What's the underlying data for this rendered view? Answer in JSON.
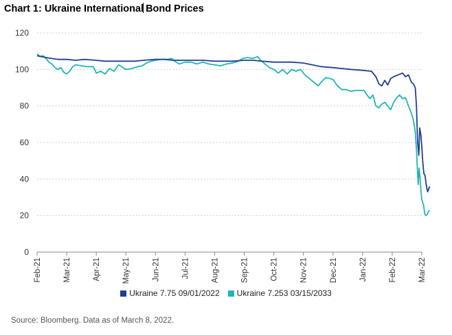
{
  "title_before": "Chart 1: Ukraine International",
  "title_after": "Bond Prices",
  "source": "Source: Bloomberg. Data as of March 8, 2022.",
  "colors": {
    "series1": "#1f3f8f",
    "series2": "#1fb4b8",
    "grid": "#bfbfbf",
    "axis": "#888888",
    "text": "#333333"
  },
  "chart_data": {
    "type": "line",
    "title": "Chart 1: Ukraine International Bond Prices",
    "xlabel": "",
    "ylabel": "",
    "ylim": [
      0,
      120
    ],
    "yticks": [
      0,
      20,
      40,
      60,
      80,
      100,
      120
    ],
    "grid": "horizontal-dotted",
    "legend_position": "bottom",
    "categories": [
      "Feb-21",
      "Mar-21",
      "Apr-21",
      "May-21",
      "Jun-21",
      "Jul-21",
      "Aug-21",
      "Sep-21",
      "Oct-21",
      "Nov-21",
      "Dec-21",
      "Jan-22",
      "Feb-22",
      "Mar-22"
    ],
    "series": [
      {
        "name": "Ukraine 7.75 09/01/2022",
        "points": [
          [
            0,
            107.5
          ],
          [
            0.15,
            107
          ],
          [
            0.3,
            106.5
          ],
          [
            0.5,
            106
          ],
          [
            0.7,
            105.5
          ],
          [
            1,
            105.5
          ],
          [
            1.3,
            105
          ],
          [
            1.6,
            105.5
          ],
          [
            2,
            105
          ],
          [
            2.3,
            104.5
          ],
          [
            2.6,
            104.5
          ],
          [
            3,
            104.5
          ],
          [
            3.3,
            104.5
          ],
          [
            3.6,
            105
          ],
          [
            4,
            105.5
          ],
          [
            4.3,
            105.5
          ],
          [
            4.6,
            105
          ],
          [
            5,
            105
          ],
          [
            5.3,
            105
          ],
          [
            5.6,
            105
          ],
          [
            6,
            104.5
          ],
          [
            6.3,
            104.5
          ],
          [
            6.6,
            104.5
          ],
          [
            7,
            105
          ],
          [
            7.3,
            105
          ],
          [
            7.6,
            104.5
          ],
          [
            8,
            104
          ],
          [
            8.3,
            104
          ],
          [
            8.6,
            104
          ],
          [
            9,
            103.5
          ],
          [
            9.3,
            102.5
          ],
          [
            9.6,
            101.5
          ],
          [
            10,
            101
          ],
          [
            10.3,
            100.5
          ],
          [
            10.6,
            100
          ],
          [
            11,
            99.5
          ],
          [
            11.3,
            99
          ],
          [
            11.45,
            96
          ],
          [
            11.55,
            92
          ],
          [
            11.65,
            91
          ],
          [
            11.75,
            94
          ],
          [
            11.85,
            91.5
          ],
          [
            11.95,
            95
          ],
          [
            12.05,
            96
          ],
          [
            12.2,
            97
          ],
          [
            12.35,
            98
          ],
          [
            12.45,
            96
          ],
          [
            12.55,
            97
          ],
          [
            12.65,
            93
          ],
          [
            12.72,
            92
          ],
          [
            12.78,
            90
          ],
          [
            12.82,
            80
          ],
          [
            12.86,
            60
          ],
          [
            12.9,
            53
          ],
          [
            12.93,
            68
          ],
          [
            12.97,
            64
          ],
          [
            13.0,
            58
          ],
          [
            13.03,
            50
          ],
          [
            13.07,
            43
          ],
          [
            13.11,
            42
          ],
          [
            13.14,
            38
          ],
          [
            13.17,
            35
          ],
          [
            13.2,
            33
          ],
          [
            13.24,
            35
          ],
          [
            13.27,
            36
          ]
        ]
      },
      {
        "name": "Ukraine 7.253 03/15/2033",
        "points": [
          [
            0,
            108.5
          ],
          [
            0.1,
            107
          ],
          [
            0.2,
            107.5
          ],
          [
            0.3,
            106
          ],
          [
            0.4,
            104
          ],
          [
            0.5,
            103
          ],
          [
            0.6,
            101
          ],
          [
            0.7,
            100
          ],
          [
            0.8,
            101
          ],
          [
            0.9,
            98.5
          ],
          [
            1,
            97.5
          ],
          [
            1.1,
            99
          ],
          [
            1.2,
            101.5
          ],
          [
            1.3,
            102.5
          ],
          [
            1.5,
            102
          ],
          [
            1.7,
            101.5
          ],
          [
            1.9,
            101.5
          ],
          [
            2,
            98
          ],
          [
            2.15,
            99
          ],
          [
            2.3,
            97.5
          ],
          [
            2.45,
            100.5
          ],
          [
            2.6,
            99
          ],
          [
            2.75,
            102.5
          ],
          [
            2.9,
            101
          ],
          [
            3,
            100
          ],
          [
            3.2,
            100.5
          ],
          [
            3.4,
            101.5
          ],
          [
            3.55,
            102
          ],
          [
            3.7,
            103.5
          ],
          [
            3.85,
            104.5
          ],
          [
            4,
            105
          ],
          [
            4.2,
            105.5
          ],
          [
            4.4,
            105.5
          ],
          [
            4.55,
            106
          ],
          [
            4.65,
            104.5
          ],
          [
            4.8,
            103
          ],
          [
            5,
            104
          ],
          [
            5.2,
            104
          ],
          [
            5.4,
            103
          ],
          [
            5.6,
            104
          ],
          [
            5.8,
            103
          ],
          [
            6,
            102.5
          ],
          [
            6.2,
            102
          ],
          [
            6.4,
            103
          ],
          [
            6.6,
            103.5
          ],
          [
            6.8,
            104.5
          ],
          [
            6.95,
            106
          ],
          [
            7.1,
            106.5
          ],
          [
            7.3,
            106
          ],
          [
            7.45,
            107
          ],
          [
            7.55,
            105
          ],
          [
            7.7,
            103
          ],
          [
            7.85,
            101
          ],
          [
            8,
            100
          ],
          [
            8.15,
            98
          ],
          [
            8.3,
            100
          ],
          [
            8.45,
            97.5
          ],
          [
            8.6,
            100
          ],
          [
            8.75,
            99
          ],
          [
            8.9,
            100
          ],
          [
            9.05,
            97
          ],
          [
            9.2,
            95
          ],
          [
            9.35,
            93
          ],
          [
            9.5,
            91
          ],
          [
            9.6,
            93
          ],
          [
            9.75,
            95.5
          ],
          [
            9.9,
            95
          ],
          [
            10,
            94.5
          ],
          [
            10.15,
            91
          ],
          [
            10.3,
            89
          ],
          [
            10.45,
            89
          ],
          [
            10.6,
            88
          ],
          [
            10.75,
            88.5
          ],
          [
            10.9,
            88.5
          ],
          [
            11.05,
            88.5
          ],
          [
            11.15,
            86
          ],
          [
            11.25,
            84
          ],
          [
            11.35,
            86
          ],
          [
            11.45,
            80
          ],
          [
            11.55,
            79
          ],
          [
            11.65,
            81
          ],
          [
            11.75,
            82
          ],
          [
            11.85,
            80
          ],
          [
            11.95,
            78
          ],
          [
            12.05,
            82
          ],
          [
            12.15,
            84.5
          ],
          [
            12.25,
            86
          ],
          [
            12.35,
            84
          ],
          [
            12.45,
            84.5
          ],
          [
            12.55,
            80
          ],
          [
            12.65,
            76
          ],
          [
            12.72,
            72
          ],
          [
            12.78,
            66
          ],
          [
            12.82,
            56
          ],
          [
            12.85,
            46
          ],
          [
            12.88,
            37
          ],
          [
            12.91,
            46
          ],
          [
            12.94,
            41
          ],
          [
            12.97,
            34
          ],
          [
            13.0,
            29
          ],
          [
            13.03,
            27
          ],
          [
            13.06,
            26
          ],
          [
            13.1,
            21
          ],
          [
            13.13,
            20
          ],
          [
            13.18,
            20.5
          ],
          [
            13.22,
            22
          ],
          [
            13.27,
            23
          ]
        ]
      }
    ]
  }
}
